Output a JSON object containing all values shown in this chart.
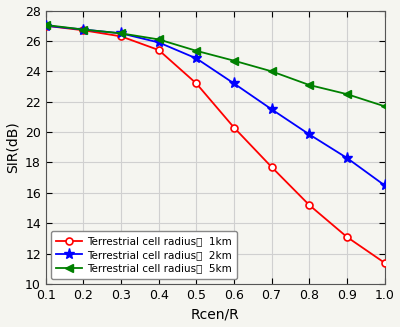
{
  "x": [
    0.1,
    0.2,
    0.3,
    0.4,
    0.5,
    0.6,
    0.7,
    0.8,
    0.9,
    1.0
  ],
  "y_1km": [
    27.0,
    26.7,
    26.3,
    25.4,
    23.2,
    20.3,
    17.7,
    15.2,
    13.1,
    11.4
  ],
  "y_2km": [
    27.0,
    26.75,
    26.5,
    25.9,
    24.85,
    23.2,
    21.5,
    19.85,
    18.3,
    16.5
  ],
  "y_5km": [
    27.05,
    26.75,
    26.5,
    26.1,
    25.35,
    24.7,
    24.0,
    23.1,
    22.5,
    21.7
  ],
  "color_1km": "#ff0000",
  "color_2km": "#0000ff",
  "color_5km": "#008000",
  "marker_1km": "o",
  "marker_2km": "*",
  "marker_5km": "<",
  "label_1km": "Terrestrial cell radius：  1km",
  "label_2km": "Terrestrial cell radius：  2km",
  "label_5km": "Terrestrial cell radius：  5km",
  "xlabel": "Rcen/R",
  "ylabel": "SIR(dB)",
  "xlim": [
    0.1,
    1.0
  ],
  "ylim": [
    10,
    28
  ],
  "xticks": [
    0.1,
    0.2,
    0.3,
    0.4,
    0.5,
    0.6,
    0.7,
    0.8,
    0.9,
    1.0
  ],
  "yticks": [
    10,
    12,
    14,
    16,
    18,
    20,
    22,
    24,
    26,
    28
  ],
  "bg_color": "#f5f5f0",
  "plot_bg": "#f5f5f0",
  "grid_color": "#d0d0d0",
  "spine_color": "#555555"
}
